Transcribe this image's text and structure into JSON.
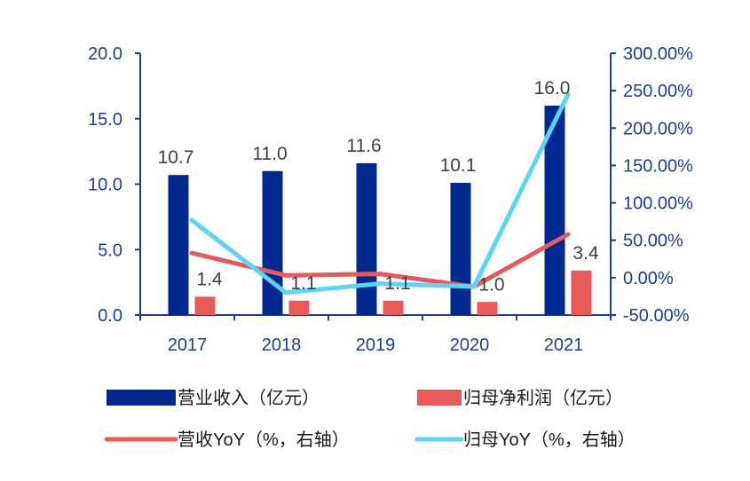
{
  "chart_data": {
    "type": "bar",
    "categories": [
      "2017",
      "2018",
      "2019",
      "2020",
      "2021"
    ],
    "series": [
      {
        "name": "营业收入（亿元）",
        "kind": "bar",
        "axis": "left",
        "color": "#002a8f",
        "values": [
          10.7,
          11.0,
          11.6,
          10.1,
          16.0
        ],
        "labels": [
          "10.7",
          "11.0",
          "11.6",
          "10.1",
          "16.0"
        ]
      },
      {
        "name": "归母净利润（亿元）",
        "kind": "bar",
        "axis": "left",
        "color": "#e85a5a",
        "values": [
          1.4,
          1.1,
          1.1,
          1.0,
          3.4
        ],
        "labels": [
          "1.4",
          "1.1",
          "1.1",
          "1.0",
          "3.4"
        ]
      },
      {
        "name": "营收YoY（%，右轴）",
        "kind": "line",
        "axis": "right",
        "color": "#e85a5a",
        "values": [
          33,
          3,
          5,
          -12,
          58
        ]
      },
      {
        "name": "归母YoY（%，右轴）",
        "kind": "line",
        "axis": "right",
        "color": "#5bd4f6",
        "values": [
          77,
          -20,
          -8,
          -12,
          245
        ]
      }
    ],
    "y_left": {
      "ylim": [
        0,
        20
      ],
      "ticks": [
        "0.0",
        "5.0",
        "10.0",
        "15.0",
        "20.0"
      ]
    },
    "y_right": {
      "ylim": [
        -50,
        300
      ],
      "ticks": [
        "-50.00%",
        "0.00%",
        "50.00%",
        "100.00%",
        "150.00%",
        "200.00%",
        "250.00%",
        "300.00%"
      ]
    },
    "legend": {
      "placement": "bottom"
    },
    "grid": false
  }
}
